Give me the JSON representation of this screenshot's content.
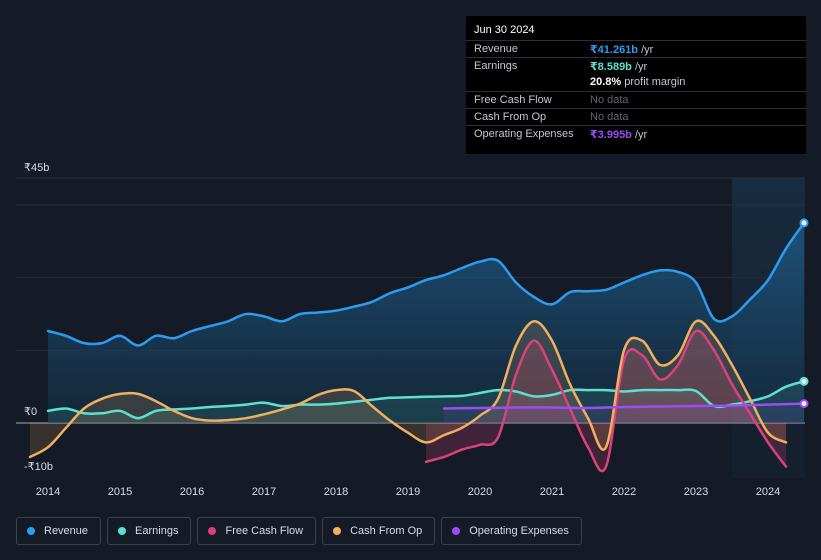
{
  "tooltip": {
    "date": "Jun 30 2024",
    "revenue_label": "Revenue",
    "revenue_value": "₹41.261b",
    "revenue_unit": " /yr",
    "earnings_label": "Earnings",
    "earnings_value": "₹8.589b",
    "earnings_unit": " /yr",
    "margin_value": "20.8%",
    "margin_unit": " profit margin",
    "fcf_label": "Free Cash Flow",
    "fcf_value": "No data",
    "cfo_label": "Cash From Op",
    "cfo_value": "No data",
    "opex_label": "Operating Expenses",
    "opex_value": "₹3.995b",
    "opex_unit": " /yr"
  },
  "legend": [
    {
      "label": "Revenue",
      "color": "#2d9cf0"
    },
    {
      "label": "Earnings",
      "color": "#5de0cf"
    },
    {
      "label": "Free Cash Flow",
      "color": "#d9427b"
    },
    {
      "label": "Cash From Op",
      "color": "#f0b060"
    },
    {
      "label": "Operating Expenses",
      "color": "#9d4cf5"
    }
  ],
  "chart_data": {
    "type": "area",
    "title": "",
    "xlabel": "",
    "ylabel": "",
    "ylim": [
      -10,
      45
    ],
    "y_tick_labels": [
      "₹45b",
      "₹0",
      "-₹10b"
    ],
    "y_ticks": [
      45,
      0,
      -10
    ],
    "x_ticks": [
      2014,
      2015,
      2016,
      2017,
      2018,
      2019,
      2020,
      2021,
      2022,
      2023,
      2024
    ],
    "x_tick_labels": [
      "2014",
      "2015",
      "2016",
      "2017",
      "2018",
      "2019",
      "2020",
      "2021",
      "2022",
      "2023",
      "2024"
    ],
    "x_range": [
      2013.6,
      2024.5
    ],
    "series": [
      {
        "name": "Revenue",
        "color": "#2d9cf0",
        "x": [
          2014,
          2014.25,
          2014.5,
          2014.75,
          2015,
          2015.25,
          2015.5,
          2015.75,
          2016,
          2016.25,
          2016.5,
          2016.75,
          2017,
          2017.25,
          2017.5,
          2017.75,
          2018,
          2018.25,
          2018.5,
          2018.75,
          2019,
          2019.25,
          2019.5,
          2019.75,
          2020,
          2020.25,
          2020.5,
          2020.75,
          2021,
          2021.25,
          2021.5,
          2021.75,
          2022,
          2022.25,
          2022.5,
          2022.75,
          2023,
          2023.25,
          2023.5,
          2023.75,
          2024,
          2024.25,
          2024.5
        ],
        "values": [
          19,
          18,
          16.5,
          16.5,
          18,
          16,
          18,
          17.5,
          19,
          20,
          21,
          22.5,
          22,
          21,
          22.5,
          22.8,
          23.2,
          24,
          25,
          26.8,
          28,
          29.5,
          30.5,
          32,
          33.3,
          33.5,
          29,
          26,
          24.5,
          27,
          27.2,
          27.5,
          29,
          30.5,
          31.5,
          31.2,
          29,
          21.5,
          22,
          25.5,
          29.5,
          36,
          41.3
        ]
      },
      {
        "name": "Earnings",
        "color": "#5de0cf",
        "x": [
          2014,
          2014.25,
          2014.5,
          2014.75,
          2015,
          2015.25,
          2015.5,
          2015.75,
          2016,
          2016.25,
          2016.5,
          2016.75,
          2017,
          2017.25,
          2017.5,
          2017.75,
          2018,
          2018.25,
          2018.5,
          2018.75,
          2019,
          2019.25,
          2019.5,
          2019.75,
          2020,
          2020.25,
          2020.5,
          2020.75,
          2021,
          2021.25,
          2021.5,
          2021.75,
          2022,
          2022.25,
          2022.5,
          2022.75,
          2023,
          2023.25,
          2023.5,
          2023.75,
          2024,
          2024.25,
          2024.5
        ],
        "values": [
          2.5,
          3,
          2,
          2,
          2.5,
          1,
          2.5,
          2.8,
          3,
          3.3,
          3.5,
          3.8,
          4.2,
          3.5,
          3.8,
          3.8,
          4,
          4.4,
          4.8,
          5.2,
          5.3,
          5.4,
          5.5,
          5.6,
          6.2,
          6.8,
          6.5,
          5.5,
          5.8,
          6.8,
          6.8,
          6.8,
          6.5,
          6.8,
          6.8,
          6.8,
          6.6,
          3.5,
          3.8,
          4.5,
          5.5,
          7.5,
          8.6
        ]
      },
      {
        "name": "Free Cash Flow",
        "color": "#d9427b",
        "x": [
          2019.25,
          2019.5,
          2019.75,
          2020,
          2020.25,
          2020.5,
          2020.75,
          2021,
          2021.25,
          2021.5,
          2021.75,
          2022,
          2022.25,
          2022.5,
          2022.75,
          2023,
          2023.25,
          2023.5,
          2023.75,
          2024,
          2024.25
        ],
        "values": [
          -8,
          -7,
          -5.5,
          -4.5,
          -3,
          10,
          17,
          11,
          3,
          -5,
          -9,
          13,
          14,
          9,
          12,
          19,
          15,
          8,
          2,
          -4,
          -9
        ]
      },
      {
        "name": "Cash From Op",
        "color": "#f0b060",
        "x": [
          2013.75,
          2014,
          2014.25,
          2014.5,
          2014.75,
          2015,
          2015.25,
          2015.5,
          2015.75,
          2016,
          2016.25,
          2016.5,
          2016.75,
          2017,
          2017.25,
          2017.5,
          2017.75,
          2018,
          2018.25,
          2018.5,
          2018.75,
          2019,
          2019.25,
          2019.5,
          2019.75,
          2020,
          2020.25,
          2020.5,
          2020.75,
          2021,
          2021.25,
          2021.5,
          2021.75,
          2022,
          2022.25,
          2022.5,
          2022.75,
          2023,
          2023.25,
          2023.5,
          2023.75,
          2024,
          2024.25
        ],
        "values": [
          -7,
          -5,
          -1,
          3,
          5,
          6,
          6,
          4.5,
          2.5,
          1,
          0.5,
          0.6,
          1,
          1.8,
          2.8,
          4,
          5.8,
          6.8,
          6.6,
          3.5,
          0.5,
          -2,
          -4,
          -2.5,
          -1,
          1.5,
          5,
          16,
          21,
          17,
          8,
          1,
          -5,
          15,
          17,
          12,
          14,
          21,
          18,
          12,
          5,
          -2,
          -4
        ]
      },
      {
        "name": "Operating Expenses",
        "color": "#9d4cf5",
        "x": [
          2019.5,
          2020,
          2020.5,
          2021,
          2021.5,
          2022,
          2022.5,
          2023,
          2023.5,
          2024,
          2024.5
        ],
        "values": [
          3,
          3.1,
          3.2,
          3.2,
          3.1,
          3.3,
          3.4,
          3.5,
          3.6,
          3.8,
          4.0
        ]
      }
    ]
  }
}
